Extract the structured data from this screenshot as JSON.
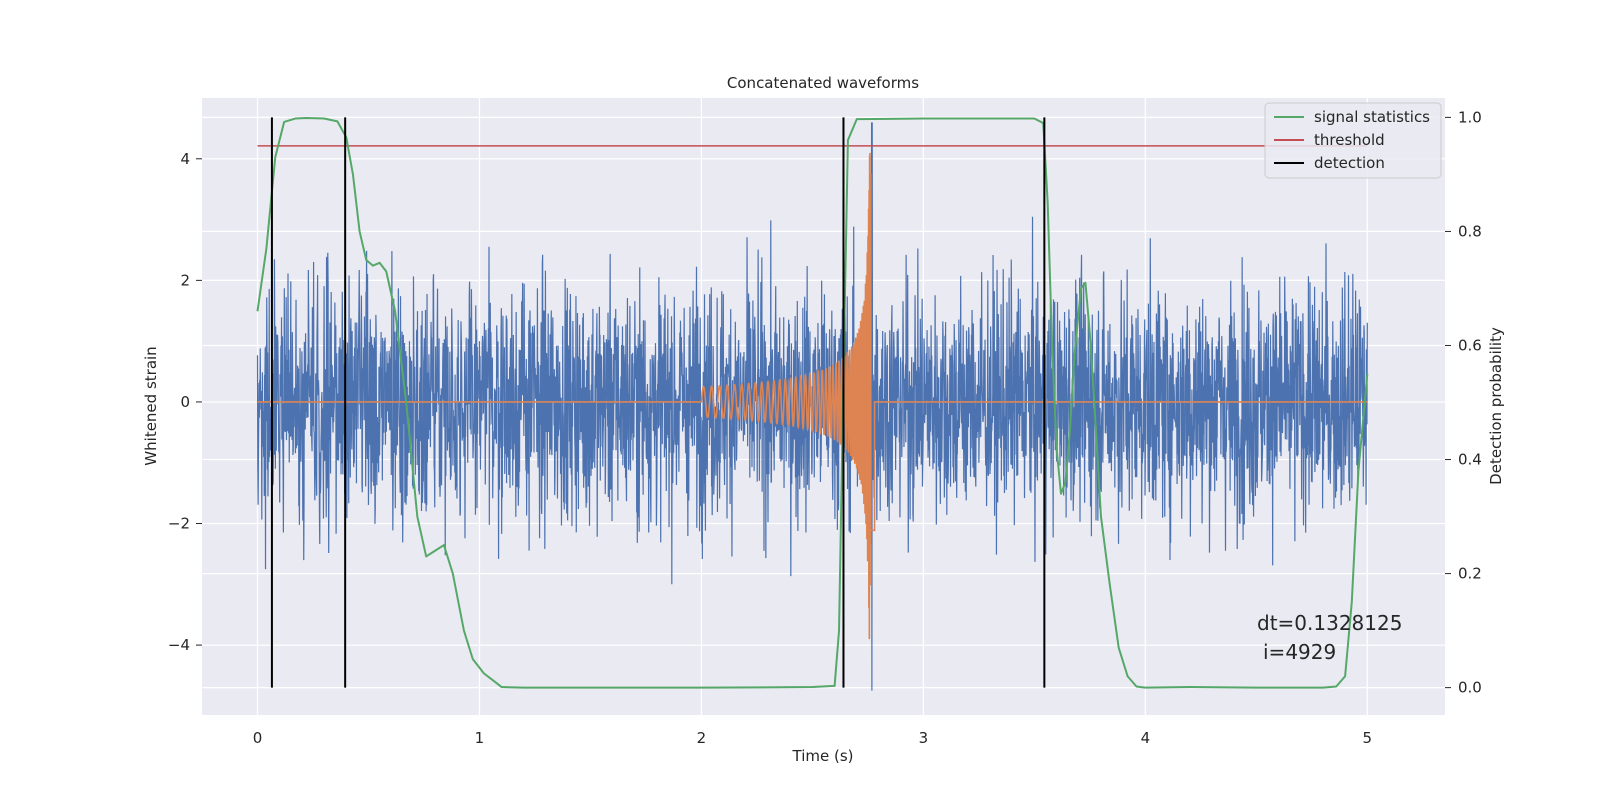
{
  "figure": {
    "annotation": [
      "dt=0.1328125",
      "i=4929"
    ]
  },
  "chart_data": {
    "type": "line",
    "title": "Concatenated waveforms",
    "xlabel": "Time (s)",
    "ylabel": "Whitened strain",
    "y2label": "Detection probability",
    "xlim": [
      -0.25,
      5.35
    ],
    "ylim": [
      -5.15,
      5.0
    ],
    "y2lim": [
      -0.048,
      1.034
    ],
    "xticks": [
      0,
      1,
      2,
      3,
      4,
      5
    ],
    "xtick_labels": [
      "0",
      "1",
      "2",
      "3",
      "4",
      "5"
    ],
    "yticks": [
      -4,
      -2,
      0,
      2,
      4
    ],
    "ytick_labels": [
      "−4",
      "−2",
      "0",
      "2",
      "4"
    ],
    "y2ticks": [
      0.0,
      0.2,
      0.4,
      0.6,
      0.8,
      1.0
    ],
    "y2tick_labels": [
      "0.0",
      "0.2",
      "0.4",
      "0.6",
      "0.8",
      "1.0"
    ],
    "grid": true,
    "legend_position": "top-right",
    "series": [
      {
        "name": "",
        "key": "noise",
        "axis": "left",
        "color": "#4c72b0",
        "description_only": true,
        "x_range": [
          0.0,
          5.0
        ],
        "amplitude_std": 0.95,
        "peak_near_event": 4.6
      },
      {
        "name": "",
        "key": "chirp",
        "axis": "left",
        "color": "#dd8452",
        "chirp": {
          "start": 2.0,
          "merger": 2.76,
          "end": 2.78,
          "start_amp": 0.25,
          "peak_amp": 4.1
        },
        "flat_value": 0,
        "x_range": [
          0.0,
          5.0
        ]
      },
      {
        "name": "signal statistics",
        "key": "prob",
        "axis": "right",
        "color": "#55a868",
        "x": [
          0.0,
          0.04,
          0.08,
          0.12,
          0.17,
          0.22,
          0.3,
          0.36,
          0.4,
          0.43,
          0.46,
          0.49,
          0.52,
          0.55,
          0.58,
          0.62,
          0.67,
          0.72,
          0.76,
          0.8,
          0.84,
          0.88,
          0.93,
          0.97,
          1.02,
          1.06,
          1.1,
          1.2,
          1.5,
          2.0,
          2.5,
          2.6,
          2.62,
          2.64,
          2.66,
          2.7,
          3.0,
          3.5,
          3.54,
          3.56,
          3.58,
          3.6,
          3.62,
          3.64,
          3.66,
          3.68,
          3.71,
          3.73,
          3.75,
          3.77,
          3.8,
          3.84,
          3.88,
          3.92,
          3.96,
          4.0,
          4.2,
          4.5,
          4.8,
          4.86,
          4.9,
          4.93,
          4.96,
          5.0
        ],
        "y": [
          0.66,
          0.77,
          0.93,
          0.992,
          0.998,
          0.999,
          0.998,
          0.993,
          0.965,
          0.9,
          0.8,
          0.75,
          0.74,
          0.745,
          0.73,
          0.66,
          0.5,
          0.3,
          0.23,
          0.24,
          0.25,
          0.2,
          0.1,
          0.05,
          0.025,
          0.013,
          0.001,
          0.0,
          0.0,
          0.0,
          0.001,
          0.003,
          0.1,
          0.55,
          0.96,
          0.997,
          0.998,
          0.998,
          0.99,
          0.85,
          0.6,
          0.42,
          0.34,
          0.36,
          0.45,
          0.58,
          0.7,
          0.71,
          0.62,
          0.5,
          0.3,
          0.18,
          0.07,
          0.02,
          0.002,
          0.0,
          0.001,
          0.0,
          0.0,
          0.002,
          0.02,
          0.15,
          0.38,
          0.55
        ]
      },
      {
        "name": "threshold",
        "key": "threshold",
        "axis": "right",
        "color": "#c44e52",
        "x": [
          0.0,
          5.0
        ],
        "y": [
          0.95,
          0.95
        ]
      },
      {
        "name": "detection",
        "key": "detection",
        "axis": "right",
        "color": "#000000",
        "vlines": [
          0.065,
          0.395,
          2.64,
          3.545
        ],
        "ymin": 0.0,
        "ymax": 1.0
      }
    ]
  }
}
